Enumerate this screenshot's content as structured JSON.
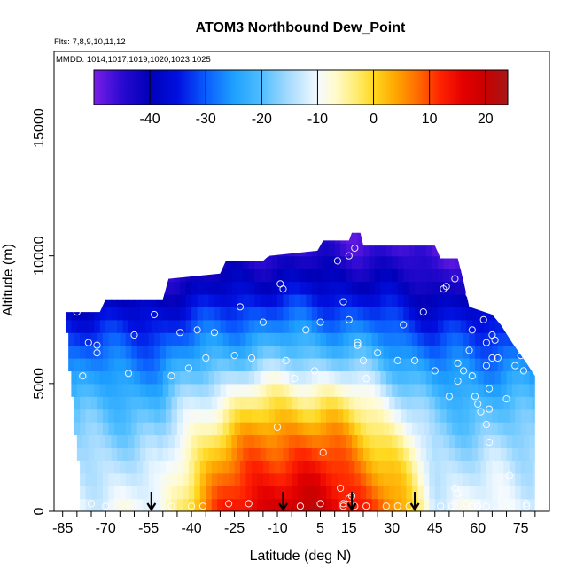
{
  "chart_data": {
    "type": "heatmap",
    "title": "ATOM3 Northbound Dew_Point",
    "flights_label": "Flts: 7,8,9,10,11,12",
    "dates_label": "MMDD: 1014,1017,1019,1020,1023,1025",
    "xlabel": "Latitude (deg N)",
    "ylabel": "Altitude (m)",
    "xlim": [
      -88,
      85
    ],
    "ylim": [
      0,
      18000
    ],
    "x_ticks": [
      -85,
      -70,
      -55,
      -40,
      -25,
      -10,
      5,
      15,
      30,
      45,
      60,
      75
    ],
    "y_ticks": [
      0,
      5000,
      10000,
      15000
    ],
    "colorbar": {
      "range": [
        -50,
        24
      ],
      "ticks": [
        -40,
        -30,
        -20,
        -10,
        0,
        10,
        20
      ],
      "stops": [
        {
          "v": -50,
          "c": "#7a1ee8"
        },
        {
          "v": -45,
          "c": "#2a0ad0"
        },
        {
          "v": -40,
          "c": "#0000b8"
        },
        {
          "v": -35,
          "c": "#0010e0"
        },
        {
          "v": -30,
          "c": "#0a5cff"
        },
        {
          "v": -25,
          "c": "#1ea0ff"
        },
        {
          "v": -20,
          "c": "#50beff"
        },
        {
          "v": -15,
          "c": "#a8dcff"
        },
        {
          "v": -10,
          "c": "#f4faff"
        },
        {
          "v": -7,
          "c": "#fffbd0"
        },
        {
          "v": -3,
          "c": "#ffec70"
        },
        {
          "v": 0,
          "c": "#ffd820"
        },
        {
          "v": 4,
          "c": "#ffa500"
        },
        {
          "v": 8,
          "c": "#ff6a00"
        },
        {
          "v": 12,
          "c": "#ff2200"
        },
        {
          "v": 16,
          "c": "#e40000"
        },
        {
          "v": 20,
          "c": "#c80000"
        },
        {
          "v": 24,
          "c": "#a81818"
        }
      ]
    },
    "profile_top": [
      {
        "lat": -84,
        "alt": 7800
      },
      {
        "lat": -72,
        "alt": 7800
      },
      {
        "lat": -70,
        "alt": 8300
      },
      {
        "lat": -50,
        "alt": 8300
      },
      {
        "lat": -48,
        "alt": 9100
      },
      {
        "lat": -30,
        "alt": 9300
      },
      {
        "lat": -28,
        "alt": 9800
      },
      {
        "lat": -15,
        "alt": 9800
      },
      {
        "lat": -13,
        "alt": 10000
      },
      {
        "lat": 4,
        "alt": 10200
      },
      {
        "lat": 6,
        "alt": 10600
      },
      {
        "lat": 15,
        "alt": 10600
      },
      {
        "lat": 16,
        "alt": 10900
      },
      {
        "lat": 19,
        "alt": 10900
      },
      {
        "lat": 20,
        "alt": 10400
      },
      {
        "lat": 45,
        "alt": 10400
      },
      {
        "lat": 47,
        "alt": 9900
      },
      {
        "lat": 53,
        "alt": 9900
      },
      {
        "lat": 55,
        "alt": 9000
      },
      {
        "lat": 57,
        "alt": 8000
      },
      {
        "lat": 65,
        "alt": 7700
      },
      {
        "lat": 68,
        "alt": 7300
      },
      {
        "lat": 72,
        "alt": 6600
      },
      {
        "lat": 77,
        "alt": 5800
      },
      {
        "lat": 80,
        "alt": 5300
      }
    ],
    "profile_bottom": [
      {
        "lat": -84,
        "alt": 0
      },
      {
        "lat": 80,
        "alt": 0
      }
    ],
    "region_edges": [
      {
        "alt": 7800,
        "left": -83.5,
        "right": 74
      },
      {
        "alt": 5000,
        "left": -81.5,
        "right": 79
      },
      {
        "alt": 2000,
        "left": -79,
        "right": 80
      },
      {
        "alt": 0,
        "left": -78,
        "right": 80
      }
    ],
    "field_layers": [
      {
        "alt": 10500,
        "base": -48
      },
      {
        "alt": 9000,
        "base": -43
      },
      {
        "alt": 8000,
        "base": -38
      },
      {
        "alt": 7000,
        "base": -33
      },
      {
        "alt": 6000,
        "base": -28
      },
      {
        "alt": 5000,
        "base": -24
      },
      {
        "alt": 4000,
        "base": -20
      },
      {
        "alt": 3000,
        "base": -17
      },
      {
        "alt": 2000,
        "base": -14
      },
      {
        "alt": 1000,
        "base": -12
      },
      {
        "alt": 0,
        "base": -10
      }
    ],
    "tropical_bump": [
      {
        "alt": 10500,
        "bump": 2
      },
      {
        "alt": 8000,
        "bump": 6
      },
      {
        "alt": 6000,
        "bump": 10
      },
      {
        "alt": 5000,
        "bump": 16
      },
      {
        "alt": 4000,
        "bump": 20
      },
      {
        "alt": 3000,
        "bump": 24
      },
      {
        "alt": 2000,
        "bump": 26
      },
      {
        "alt": 1000,
        "bump": 28
      },
      {
        "alt": 0,
        "bump": 30
      }
    ],
    "bump_center_lat": -3,
    "bump_halfwidth_deg": 48,
    "arrows_lat": [
      -54,
      -8,
      16,
      38
    ],
    "samples": [
      [
        -80,
        7800
      ],
      [
        -76,
        6600
      ],
      [
        -73,
        6500
      ],
      [
        -73,
        6200
      ],
      [
        -78,
        5300
      ],
      [
        -62,
        5400
      ],
      [
        -60,
        6900
      ],
      [
        -53,
        7700
      ],
      [
        -47,
        5300
      ],
      [
        -44,
        7000
      ],
      [
        -41,
        5600
      ],
      [
        -38,
        7100
      ],
      [
        -35,
        6000
      ],
      [
        -32,
        7000
      ],
      [
        -25,
        6100
      ],
      [
        -23,
        8000
      ],
      [
        -19,
        6000
      ],
      [
        -15,
        7400
      ],
      [
        -9,
        8900
      ],
      [
        -8,
        8700
      ],
      [
        -4,
        5200
      ],
      [
        0,
        7100
      ],
      [
        3,
        5500
      ],
      [
        5,
        7400
      ],
      [
        11,
        9800
      ],
      [
        13,
        8200
      ],
      [
        15,
        7500
      ],
      [
        18,
        6600
      ],
      [
        18,
        6500
      ],
      [
        20,
        5900
      ],
      [
        21,
        5200
      ],
      [
        25,
        6200
      ],
      [
        17,
        10300
      ],
      [
        15,
        10000
      ],
      [
        32,
        5900
      ],
      [
        34,
        7300
      ],
      [
        38,
        5900
      ],
      [
        41,
        7800
      ],
      [
        45,
        5500
      ],
      [
        48,
        8700
      ],
      [
        49,
        8800
      ],
      [
        50,
        4500
      ],
      [
        52,
        9100
      ],
      [
        53,
        5100
      ],
      [
        53,
        5800
      ],
      [
        55,
        5500
      ],
      [
        56,
        10100
      ],
      [
        57,
        8500
      ],
      [
        57,
        6300
      ],
      [
        58,
        7100
      ],
      [
        58,
        5300
      ],
      [
        59,
        4500
      ],
      [
        60,
        4200
      ],
      [
        61,
        3900
      ],
      [
        62,
        7500
      ],
      [
        63,
        6600
      ],
      [
        63,
        5700
      ],
      [
        63,
        3400
      ],
      [
        64,
        4800
      ],
      [
        64,
        4000
      ],
      [
        64,
        2700
      ],
      [
        65,
        6000
      ],
      [
        65,
        6900
      ],
      [
        66,
        6700
      ],
      [
        67,
        6000
      ],
      [
        70,
        4400
      ],
      [
        71,
        1400
      ],
      [
        73,
        5700
      ],
      [
        75,
        6100
      ],
      [
        76,
        5500
      ],
      [
        77,
        300
      ],
      [
        77,
        200
      ],
      [
        -10,
        3300
      ],
      [
        -7,
        5900
      ],
      [
        6,
        2300
      ],
      [
        12,
        900
      ],
      [
        13,
        300
      ],
      [
        13,
        200
      ],
      [
        15,
        500
      ],
      [
        16,
        600
      ],
      [
        17,
        200
      ],
      [
        21,
        200
      ],
      [
        28,
        200
      ],
      [
        32,
        200
      ],
      [
        36,
        200
      ],
      [
        47,
        200
      ],
      [
        51,
        200
      ],
      [
        52,
        900
      ],
      [
        53,
        700
      ],
      [
        56,
        300
      ],
      [
        58,
        200
      ],
      [
        60,
        200
      ],
      [
        63,
        200
      ],
      [
        -75,
        300
      ],
      [
        -70,
        200
      ],
      [
        -47,
        200
      ],
      [
        -40,
        200
      ],
      [
        -36,
        200
      ],
      [
        -27,
        300
      ],
      [
        -20,
        300
      ],
      [
        -2,
        200
      ],
      [
        5,
        300
      ]
    ]
  }
}
